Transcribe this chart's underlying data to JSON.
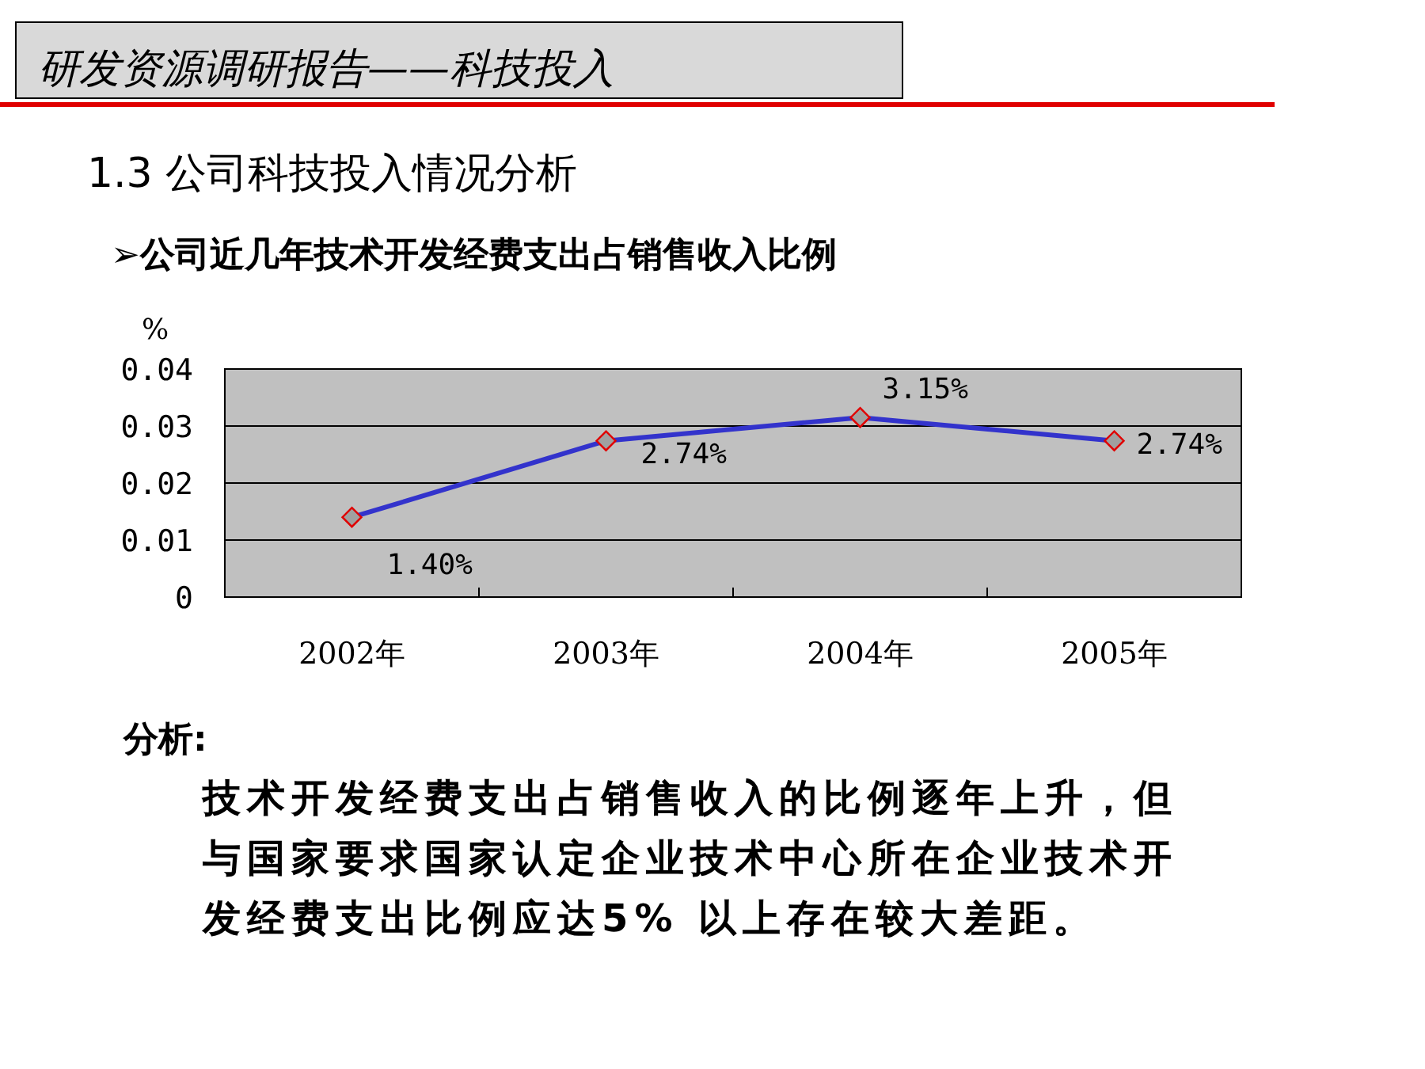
{
  "chart_data": {
    "type": "line",
    "title": "研发资源调研报告——科技投入",
    "subtitle": "1.3 公司科技投入情况分析",
    "annotations": [
      "➢公司近几年技术开发经费支出占销售收入比例",
      "分析:",
      "技术开发经费支出占销售收入的比例逐年上升，但与国家要求国家认定企业技术中心所在企业技术开发经费支出比例应达5% 以上存在较大差距。"
    ],
    "ylabel": "%",
    "categories": [
      "2002年",
      "2003年",
      "2004年",
      "2005年"
    ],
    "series": [
      {
        "color": "#3333cc",
        "values": [
          0.014,
          0.0274,
          0.0315,
          0.0274
        ],
        "value_labels": [
          "1.40%",
          "2.74%",
          "3.15%",
          "2.74%"
        ]
      }
    ],
    "ylim": [
      0,
      0.04
    ],
    "yticks": [
      0,
      0.01,
      0.02,
      0.03,
      0.04
    ],
    "grid": "y",
    "marker": "diamond",
    "line_style": "solid"
  }
}
